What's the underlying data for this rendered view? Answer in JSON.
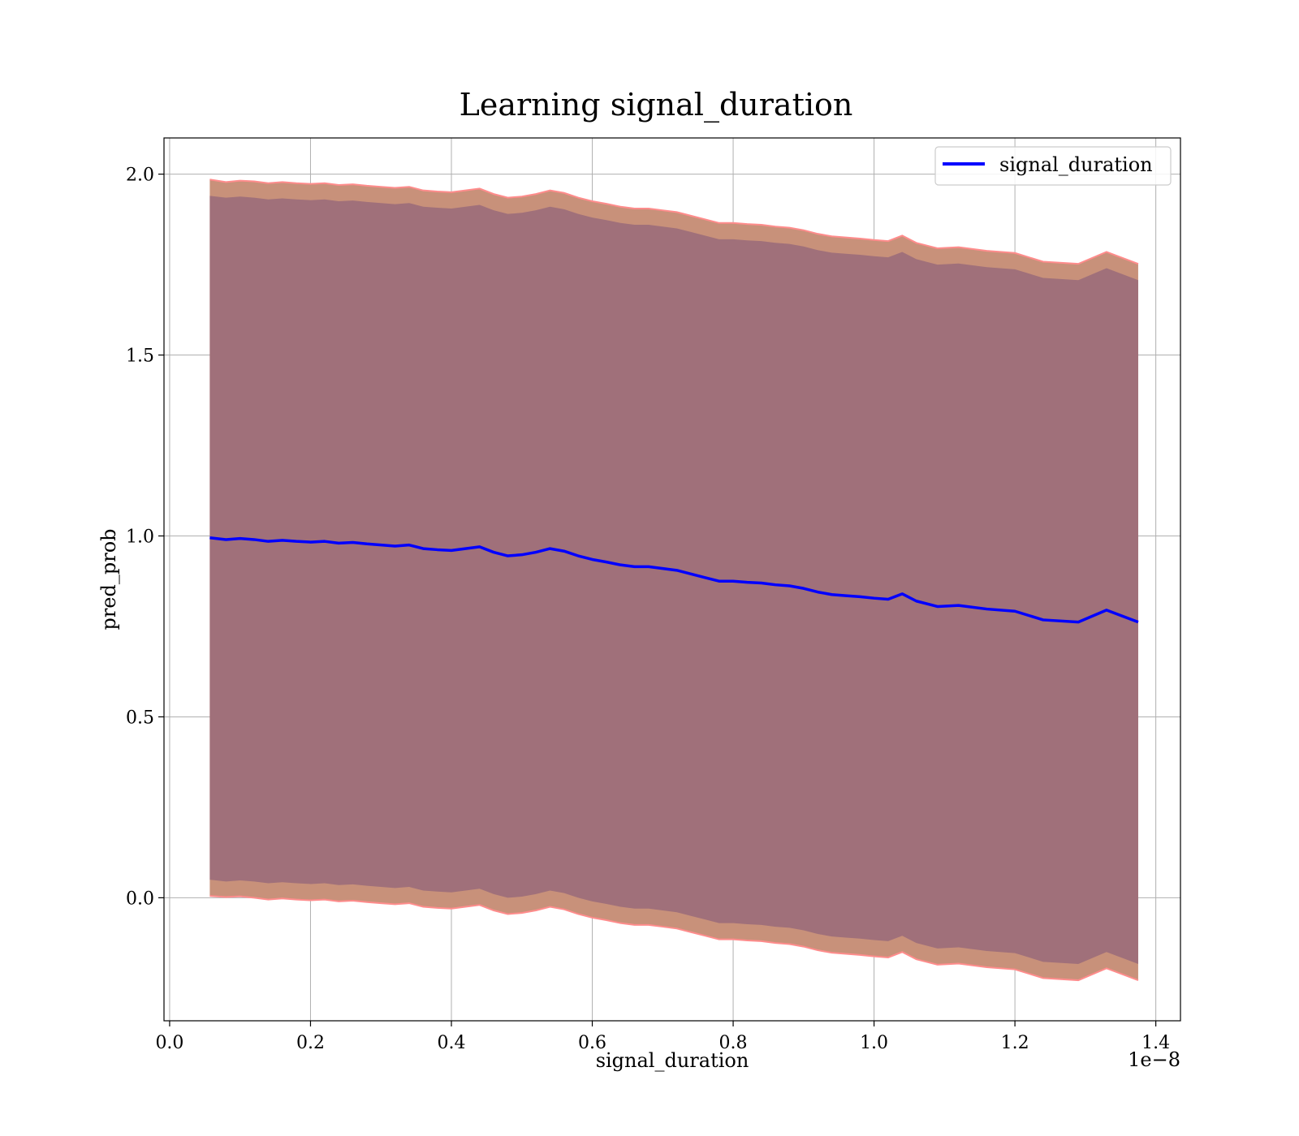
{
  "chart_data": {
    "type": "line",
    "title": "Learning signal_duration",
    "xlabel": "signal_duration",
    "ylabel": "pred_prob",
    "x_offset_label": "1e−8",
    "x_tick_values": [
      0.0,
      0.2,
      0.4,
      0.6,
      0.8,
      1.0,
      1.2,
      1.4
    ],
    "x_tick_labels": [
      "0.0",
      "0.2",
      "0.4",
      "0.6",
      "0.8",
      "1.0",
      "1.2",
      "1.4"
    ],
    "y_tick_values": [
      0.0,
      0.5,
      1.0,
      1.5,
      2.0
    ],
    "y_tick_labels": [
      "0.0",
      "0.5",
      "1.0",
      "1.5",
      "2.0"
    ],
    "xlim": [
      -0.008,
      1.435
    ],
    "ylim": [
      -0.34,
      2.1
    ],
    "grid": true,
    "legend_position": "top-right",
    "colors": {
      "line": "#0000ff",
      "outer_band": "#c8917a",
      "outer_band_edge": "#ff8c8c",
      "inner_band": "#a0707a"
    },
    "series": [
      {
        "name": "signal_duration",
        "x": [
          0.057,
          0.08,
          0.1,
          0.12,
          0.14,
          0.16,
          0.18,
          0.2,
          0.22,
          0.24,
          0.26,
          0.28,
          0.3,
          0.32,
          0.34,
          0.36,
          0.38,
          0.4,
          0.42,
          0.44,
          0.46,
          0.48,
          0.5,
          0.52,
          0.54,
          0.56,
          0.58,
          0.6,
          0.62,
          0.64,
          0.66,
          0.68,
          0.7,
          0.72,
          0.74,
          0.76,
          0.78,
          0.8,
          0.82,
          0.84,
          0.86,
          0.88,
          0.9,
          0.92,
          0.94,
          0.96,
          0.98,
          1.0,
          1.02,
          1.04,
          1.06,
          1.09,
          1.12,
          1.16,
          1.2,
          1.24,
          1.29,
          1.33,
          1.375
        ],
        "y": [
          0.995,
          0.99,
          0.993,
          0.99,
          0.985,
          0.988,
          0.985,
          0.983,
          0.985,
          0.98,
          0.982,
          0.978,
          0.975,
          0.972,
          0.975,
          0.965,
          0.962,
          0.96,
          0.965,
          0.97,
          0.955,
          0.945,
          0.948,
          0.955,
          0.965,
          0.958,
          0.945,
          0.935,
          0.928,
          0.92,
          0.915,
          0.915,
          0.91,
          0.905,
          0.895,
          0.885,
          0.875,
          0.875,
          0.872,
          0.87,
          0.865,
          0.862,
          0.855,
          0.845,
          0.838,
          0.835,
          0.832,
          0.828,
          0.825,
          0.84,
          0.82,
          0.805,
          0.808,
          0.798,
          0.792,
          0.768,
          0.762,
          0.795,
          0.762
        ],
        "outer_lower": [
          0.005,
          0.002,
          0.004,
          0.0,
          -0.005,
          -0.002,
          -0.005,
          -0.007,
          -0.005,
          -0.01,
          -0.008,
          -0.012,
          -0.015,
          -0.018,
          -0.015,
          -0.025,
          -0.028,
          -0.03,
          -0.025,
          -0.02,
          -0.035,
          -0.045,
          -0.042,
          -0.035,
          -0.025,
          -0.032,
          -0.045,
          -0.055,
          -0.062,
          -0.07,
          -0.075,
          -0.075,
          -0.08,
          -0.085,
          -0.095,
          -0.105,
          -0.115,
          -0.115,
          -0.118,
          -0.12,
          -0.125,
          -0.128,
          -0.135,
          -0.145,
          -0.152,
          -0.155,
          -0.158,
          -0.162,
          -0.165,
          -0.15,
          -0.17,
          -0.185,
          -0.182,
          -0.192,
          -0.198,
          -0.222,
          -0.228,
          -0.195,
          -0.228
        ],
        "outer_upper": [
          1.985,
          1.978,
          1.982,
          1.98,
          1.975,
          1.978,
          1.975,
          1.973,
          1.975,
          1.97,
          1.972,
          1.968,
          1.965,
          1.962,
          1.965,
          1.955,
          1.952,
          1.95,
          1.955,
          1.96,
          1.945,
          1.935,
          1.938,
          1.945,
          1.955,
          1.948,
          1.935,
          1.925,
          1.918,
          1.91,
          1.905,
          1.905,
          1.9,
          1.895,
          1.885,
          1.875,
          1.865,
          1.865,
          1.862,
          1.86,
          1.855,
          1.852,
          1.845,
          1.835,
          1.828,
          1.825,
          1.822,
          1.818,
          1.815,
          1.83,
          1.81,
          1.795,
          1.798,
          1.788,
          1.782,
          1.758,
          1.752,
          1.785,
          1.752
        ],
        "inner_lower": [
          0.05,
          0.045,
          0.048,
          0.045,
          0.04,
          0.043,
          0.04,
          0.038,
          0.04,
          0.035,
          0.037,
          0.033,
          0.03,
          0.027,
          0.03,
          0.02,
          0.017,
          0.015,
          0.02,
          0.025,
          0.01,
          0.0,
          0.003,
          0.01,
          0.02,
          0.013,
          0.0,
          -0.01,
          -0.017,
          -0.025,
          -0.03,
          -0.03,
          -0.035,
          -0.04,
          -0.05,
          -0.06,
          -0.07,
          -0.07,
          -0.073,
          -0.075,
          -0.08,
          -0.083,
          -0.09,
          -0.1,
          -0.107,
          -0.11,
          -0.113,
          -0.117,
          -0.12,
          -0.105,
          -0.125,
          -0.14,
          -0.137,
          -0.147,
          -0.153,
          -0.177,
          -0.183,
          -0.15,
          -0.183
        ],
        "inner_upper": [
          1.94,
          1.935,
          1.938,
          1.935,
          1.93,
          1.933,
          1.93,
          1.928,
          1.93,
          1.925,
          1.927,
          1.923,
          1.92,
          1.917,
          1.92,
          1.91,
          1.907,
          1.905,
          1.91,
          1.915,
          1.9,
          1.89,
          1.893,
          1.9,
          1.91,
          1.903,
          1.89,
          1.88,
          1.873,
          1.865,
          1.86,
          1.86,
          1.855,
          1.85,
          1.84,
          1.83,
          1.82,
          1.82,
          1.817,
          1.815,
          1.81,
          1.807,
          1.8,
          1.79,
          1.783,
          1.78,
          1.777,
          1.773,
          1.77,
          1.785,
          1.765,
          1.75,
          1.753,
          1.743,
          1.737,
          1.713,
          1.707,
          1.74,
          1.707
        ]
      }
    ]
  }
}
